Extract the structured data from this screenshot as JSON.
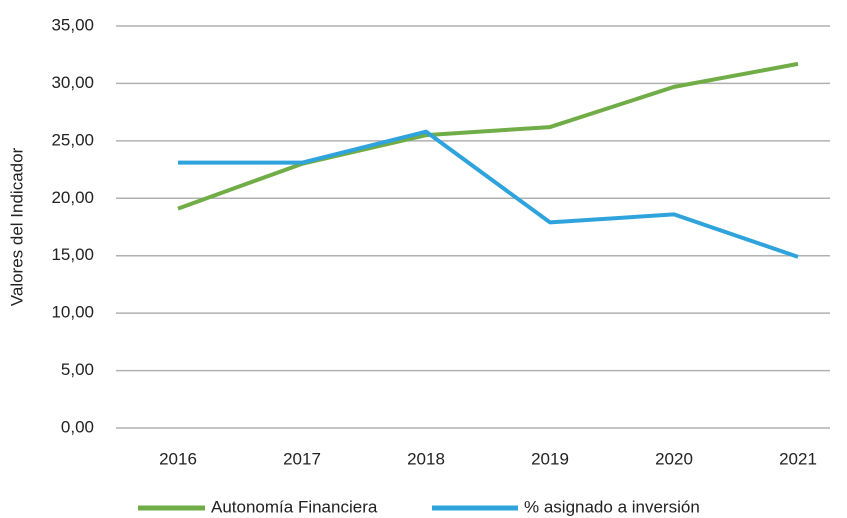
{
  "chart_data": {
    "type": "line",
    "y_label": "Valores del Indicador",
    "categories": [
      "2016",
      "2017",
      "2018",
      "2019",
      "2020",
      "2021"
    ],
    "series": [
      {
        "name": "Autonomía Financiera",
        "color": "#70ad47",
        "values": [
          19.1,
          23.0,
          25.5,
          26.2,
          29.7,
          31.7
        ]
      },
      {
        "name": "% asignado a inversión",
        "color": "#2ea3dc",
        "values": [
          23.1,
          23.1,
          25.8,
          17.9,
          18.6,
          14.9
        ]
      }
    ],
    "ylim": [
      0,
      35
    ],
    "yticks": [
      {
        "value": 0,
        "label": "0,00"
      },
      {
        "value": 5,
        "label": "5,00"
      },
      {
        "value": 10,
        "label": "10,00"
      },
      {
        "value": 15,
        "label": "15,00"
      },
      {
        "value": 20,
        "label": "20,00"
      },
      {
        "value": 25,
        "label": "25,00"
      },
      {
        "value": 30,
        "label": "30,00"
      },
      {
        "value": 35,
        "label": "35,00"
      }
    ],
    "grid": true,
    "legend": "bottom"
  }
}
